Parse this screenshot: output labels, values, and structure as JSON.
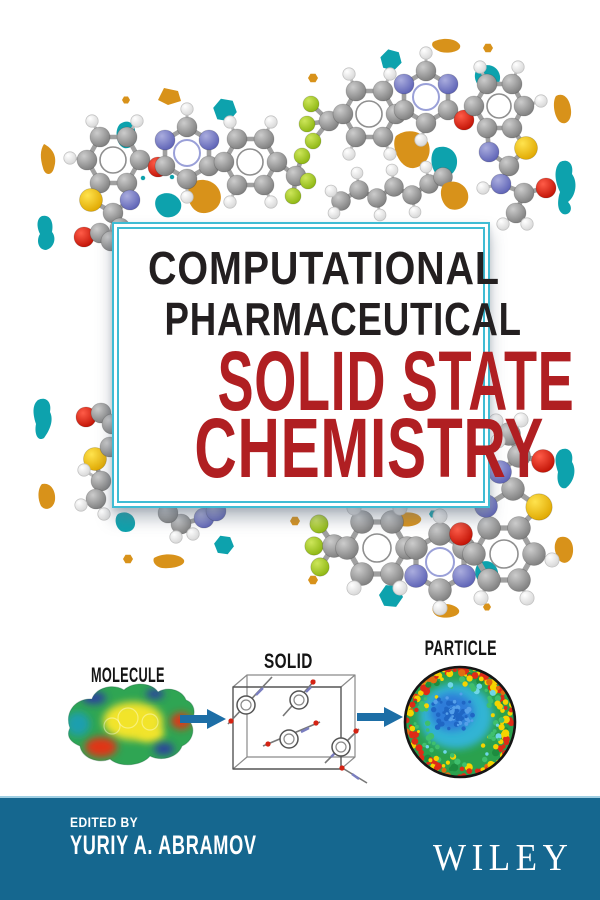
{
  "book": {
    "title_lines": [
      "COMPUTATIONAL",
      "PHARMACEUTICAL",
      "SOLID STATE",
      "CHEMISTRY"
    ],
    "subject_diagram": {
      "stages": [
        {
          "label": "MOLECULE",
          "image": "electrostatic-potential-surface"
        },
        {
          "label": "SOLID",
          "image": "crystal-unit-cell"
        },
        {
          "label": "PARTICLE",
          "image": "simulated-particle-cross-section"
        }
      ]
    },
    "footer": {
      "edited_by_label": "EDITED BY",
      "editor_name": "YURIY A. ABRAMOV",
      "publisher_logo": "WILEY"
    }
  },
  "colors": {
    "box_border_cyan": "#3fbcd4",
    "title_black": "#231f20",
    "title_red": "#b01f22",
    "footer_blue": "#15678f",
    "arrow_blue": "#1d6ea6",
    "blob_teal": "#0da2ad",
    "blob_orange": "#d8921a",
    "particle_core_blue": "#2e7cd9",
    "particle_cyan": "#31b4d4",
    "particle_green": "#2aa14d",
    "particle_red": "#df2b17",
    "particle_yellow": "#f5d400"
  }
}
